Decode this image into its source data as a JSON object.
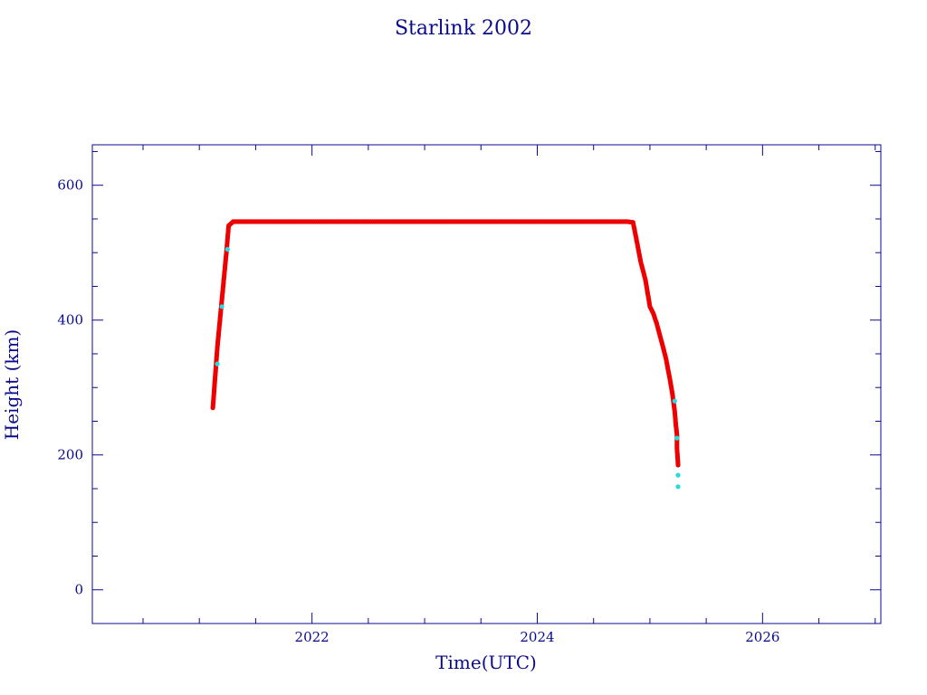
{
  "chart_data": {
    "type": "scatter",
    "title": "Starlink 2002",
    "xlabel": "Time(UTC)",
    "ylabel": "Height (km)",
    "xlim": [
      2020.05,
      2027.05
    ],
    "ylim": [
      -50,
      660
    ],
    "x_ticks": [
      2022,
      2024,
      2026
    ],
    "y_ticks": [
      0,
      200,
      400,
      600
    ],
    "x_minor_step": 0.5,
    "y_minor_step": 50,
    "grid": false,
    "colors": {
      "main": "#ee0000",
      "highlight": "#22dddd",
      "axis": "#0a0a8c"
    },
    "series": [
      {
        "color": "#ee0000",
        "x": [
          2021.12,
          2021.14,
          2021.16,
          2021.18,
          2021.2,
          2021.22,
          2021.24,
          2021.26,
          2021.3,
          2021.4,
          2021.6,
          2021.8,
          2022.0,
          2022.2,
          2022.4,
          2022.6,
          2022.8,
          2023.0,
          2023.2,
          2023.4,
          2023.6,
          2023.8,
          2024.0,
          2024.2,
          2024.4,
          2024.6,
          2024.8,
          2024.85,
          2024.88,
          2024.92,
          2024.96,
          2025.0,
          2025.03,
          2025.06,
          2025.1,
          2025.14,
          2025.18,
          2025.2,
          2025.22,
          2025.23,
          2025.24,
          2025.24,
          2025.25
        ],
        "y": [
          270,
          315,
          360,
          395,
          430,
          465,
          500,
          540,
          546,
          546,
          546,
          546,
          546,
          546,
          546,
          546,
          546,
          546,
          546,
          546,
          546,
          546,
          546,
          546,
          546,
          546,
          546,
          545,
          520,
          485,
          460,
          420,
          410,
          395,
          370,
          345,
          310,
          290,
          265,
          245,
          230,
          210,
          185
        ]
      },
      {
        "color": "#22dddd",
        "x": [
          2021.16,
          2021.2,
          2021.25,
          2025.22,
          2025.24,
          2025.25,
          2025.25
        ],
        "y": [
          335,
          420,
          505,
          280,
          225,
          170,
          153
        ]
      }
    ]
  }
}
